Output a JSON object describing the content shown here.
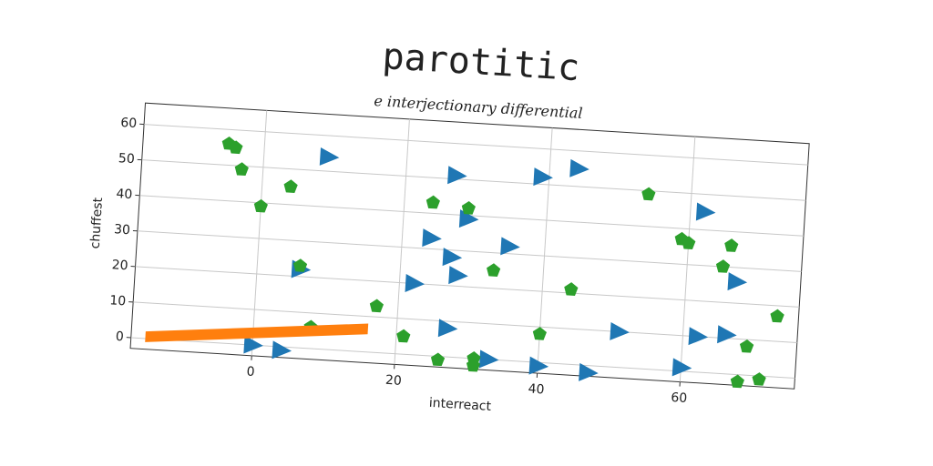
{
  "chart_data": {
    "type": "scatter",
    "title": "parotitic",
    "subtitle": "e interjectionary differential",
    "x_label": "interreact",
    "y_label": "chuffest",
    "xlim": [
      -17,
      76
    ],
    "ylim": [
      -3,
      66
    ],
    "xticks": [
      0,
      20,
      40,
      60
    ],
    "yticks": [
      0,
      10,
      20,
      30,
      40,
      50,
      60
    ],
    "grid": true,
    "series": [
      {
        "marker": "triangle-right",
        "color": "#1f77b4",
        "x": [
          9,
          27,
          39,
          44,
          24,
          27,
          28,
          29,
          35,
          22,
          6,
          27,
          33,
          40,
          47,
          51,
          62,
          66,
          60,
          62,
          67,
          0,
          4
        ],
        "y": [
          54,
          51,
          52,
          55,
          33,
          28,
          23,
          39,
          32,
          20,
          22,
          8,
          0,
          -1,
          -2,
          10,
          10,
          11,
          1,
          45,
          26,
          0,
          -1
        ]
      },
      {
        "marker": "pentagon",
        "color": "#2ca02c",
        "x": [
          -5,
          -4,
          -3,
          0,
          4,
          6,
          8,
          17,
          21,
          24,
          29,
          26,
          31,
          31,
          33,
          40,
          44,
          54,
          59,
          60,
          66,
          65,
          69,
          73,
          71,
          68
        ],
        "y": [
          56,
          55,
          49,
          39,
          45,
          23,
          6,
          13,
          5,
          43,
          42,
          -1,
          0,
          -2,
          25,
          8,
          21,
          49,
          37,
          36,
          36,
          30,
          8,
          17,
          -1,
          -2
        ]
      },
      {
        "marker": "band",
        "color": "#ff7f0e",
        "x": [
          -15,
          16
        ],
        "lower": [
          -1,
          5
        ],
        "upper": [
          2,
          8
        ]
      }
    ]
  }
}
